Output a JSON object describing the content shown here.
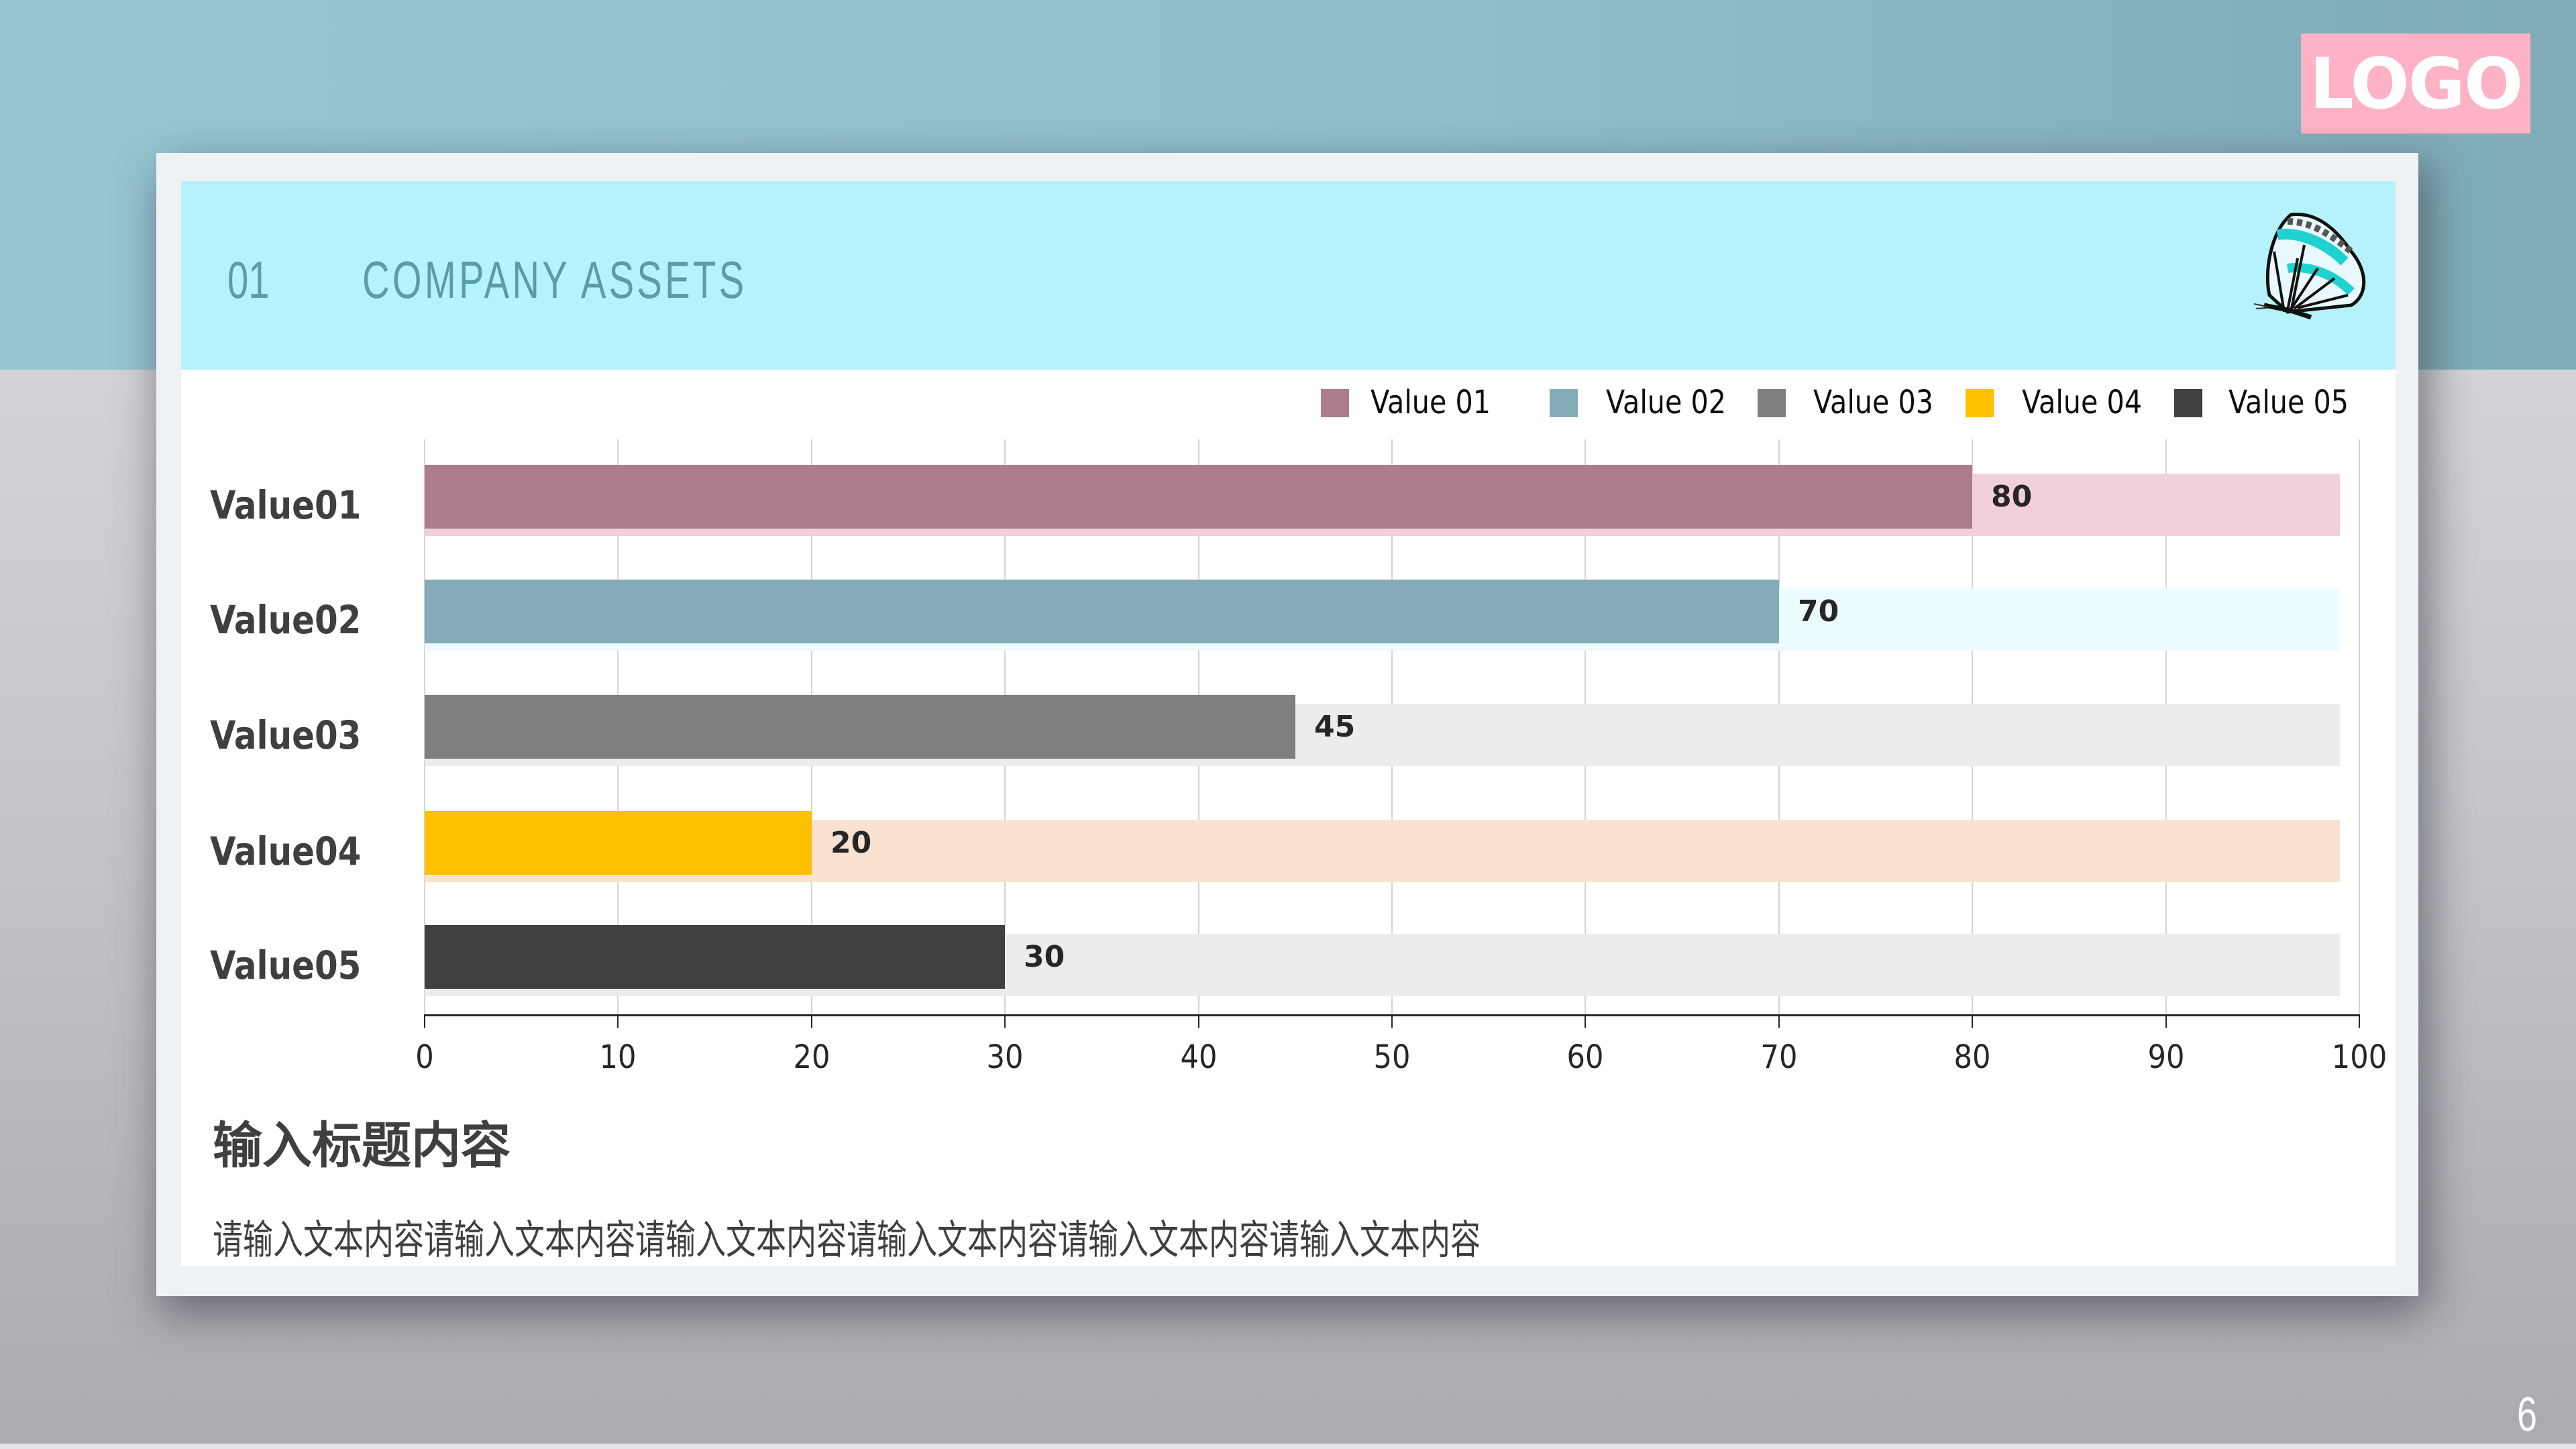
{
  "logo": {
    "text": "LOGO",
    "bg_color": "#fdb3c5"
  },
  "header": {
    "number": "01",
    "title": "COMPANY  ASSETS",
    "icon": "butterfly-icon"
  },
  "chart_data": {
    "type": "bar",
    "orientation": "horizontal",
    "title": "",
    "categories": [
      "Value01",
      "Value02",
      "Value03",
      "Value04",
      "Value05"
    ],
    "values": [
      80,
      70,
      45,
      20,
      30
    ],
    "background_track_value": 99,
    "series": [
      {
        "name": "Value 01",
        "value": 80,
        "color": "#ad7d8c",
        "track_color": "#f1d0dc"
      },
      {
        "name": "Value 02",
        "value": 70,
        "color": "#84abb8",
        "track_color": "#ecfbfd"
      },
      {
        "name": "Value 03",
        "value": 45,
        "color": "#7f7f7f",
        "track_color": "#ececec"
      },
      {
        "name": "Value 04",
        "value": 20,
        "color": "#ffc000",
        "track_color": "#fbe2d0"
      },
      {
        "name": "Value 05",
        "value": 30,
        "color": "#404040",
        "track_color": "#ececec"
      }
    ],
    "legend": [
      "Value 01",
      "Value 02",
      "Value 03",
      "Value 04",
      "Value 05"
    ],
    "legend_position": "top-right",
    "xlabel": "",
    "ylabel": "",
    "xlim": [
      0,
      100
    ],
    "xticks": [
      "0",
      "10",
      "20",
      "30",
      "40",
      "50",
      "60",
      "70",
      "80",
      "90",
      "100"
    ],
    "grid": true,
    "data_labels": [
      "80",
      "70",
      "45",
      "20",
      "30"
    ]
  },
  "content": {
    "heading": "输入标题内容",
    "body": "请输入文本内容请输入文本内容请输入文本内容请输入文本内容请输入文本内容请输入文本内容"
  },
  "page_number": "6"
}
